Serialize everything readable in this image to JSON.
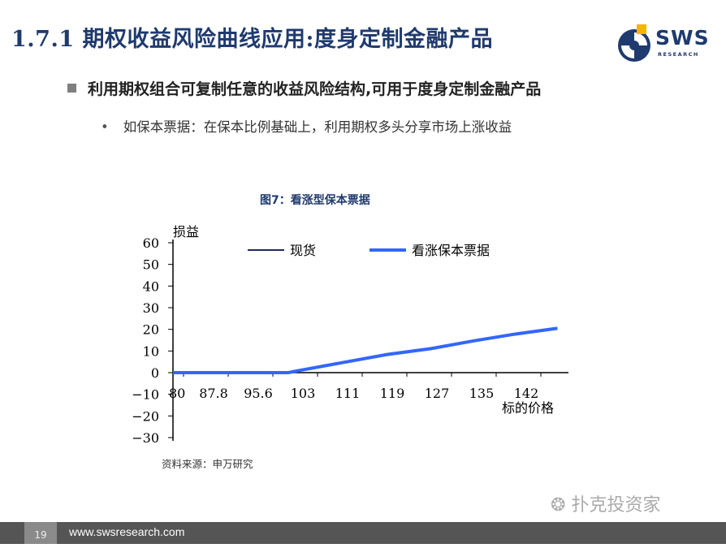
{
  "header": {
    "title": "1.7.1 期权收益风险曲线应用:度身定制金融产品",
    "logo_text": "SWS",
    "logo_sub": "RESEARCH"
  },
  "content": {
    "bullet1": "利用期权组合可复制任意的收益风险结构,可用于度身定制金融产品",
    "bullet2_marker": "•",
    "bullet2": "如保本票据：在保本比例基础上，利用期权多头分享市场上涨收益"
  },
  "figure": {
    "title": "图7：看涨型保本票据",
    "source": "资料来源：申万研究"
  },
  "chart_data": {
    "type": "line",
    "ylabel": "损益",
    "xlabel": "标的价格",
    "y_ticks": [
      "60",
      "50",
      "40",
      "30",
      "20",
      "10",
      "0",
      "−10",
      "−20",
      "−30"
    ],
    "x_ticks": [
      "80",
      "87.8",
      "95.6",
      "103",
      "111",
      "119",
      "127",
      "135",
      "142"
    ],
    "ylim": [
      -30,
      60
    ],
    "xlim": [
      80,
      152
    ],
    "legend_position": "top",
    "series": [
      {
        "name": "现货",
        "color": "#1f2a5c",
        "x": [],
        "y": []
      },
      {
        "name": "看涨保本票据",
        "color": "#3366ff",
        "x": [
          80,
          87.8,
          95.6,
          101,
          103,
          111,
          119,
          127,
          135,
          142,
          150
        ],
        "y": [
          0,
          0,
          0,
          0,
          1,
          4.7,
          8.4,
          11.1,
          14.8,
          17.7,
          20.5
        ]
      }
    ],
    "grid": false
  },
  "watermark": "扑克投资家",
  "footer": {
    "page": "19",
    "url": "www.swsresearch.com"
  },
  "colors": {
    "title": "#1f3a6e",
    "footer_bg": "#555555",
    "series_line": "#3366ff"
  }
}
